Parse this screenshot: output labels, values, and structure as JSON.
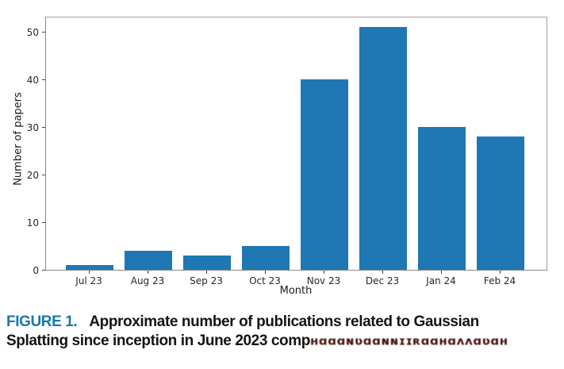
{
  "colors": {
    "bar": "#1f77b4",
    "caption_label": "#1878a8",
    "garbled_text": "#44100a",
    "axis_text": "#262626"
  },
  "chart_data": {
    "type": "bar",
    "categories": [
      "Jul 23",
      "Aug 23",
      "Sep 23",
      "Oct 23",
      "Nov 23",
      "Dec 23",
      "Jan 24",
      "Feb 24"
    ],
    "values": [
      1,
      4,
      3,
      5,
      40,
      51,
      30,
      28
    ],
    "title": "",
    "xlabel": "Month",
    "ylabel": "Number of papers",
    "ylim": [
      0,
      53.5
    ],
    "yticks": [
      0,
      10,
      20,
      30,
      40,
      50
    ],
    "grid": false,
    "legend": "none"
  },
  "caption": {
    "label": "FIGURE 1.",
    "line1_rest": "Approximate number of publications related to Gaussian",
    "line2_start": "Splatting since inception in June 2023 comp",
    "garbled": "ʜɑɑɑɴʋɑɑɴɴɪɪʀɑɑʜɑʌʌɑʋɑʜ"
  }
}
